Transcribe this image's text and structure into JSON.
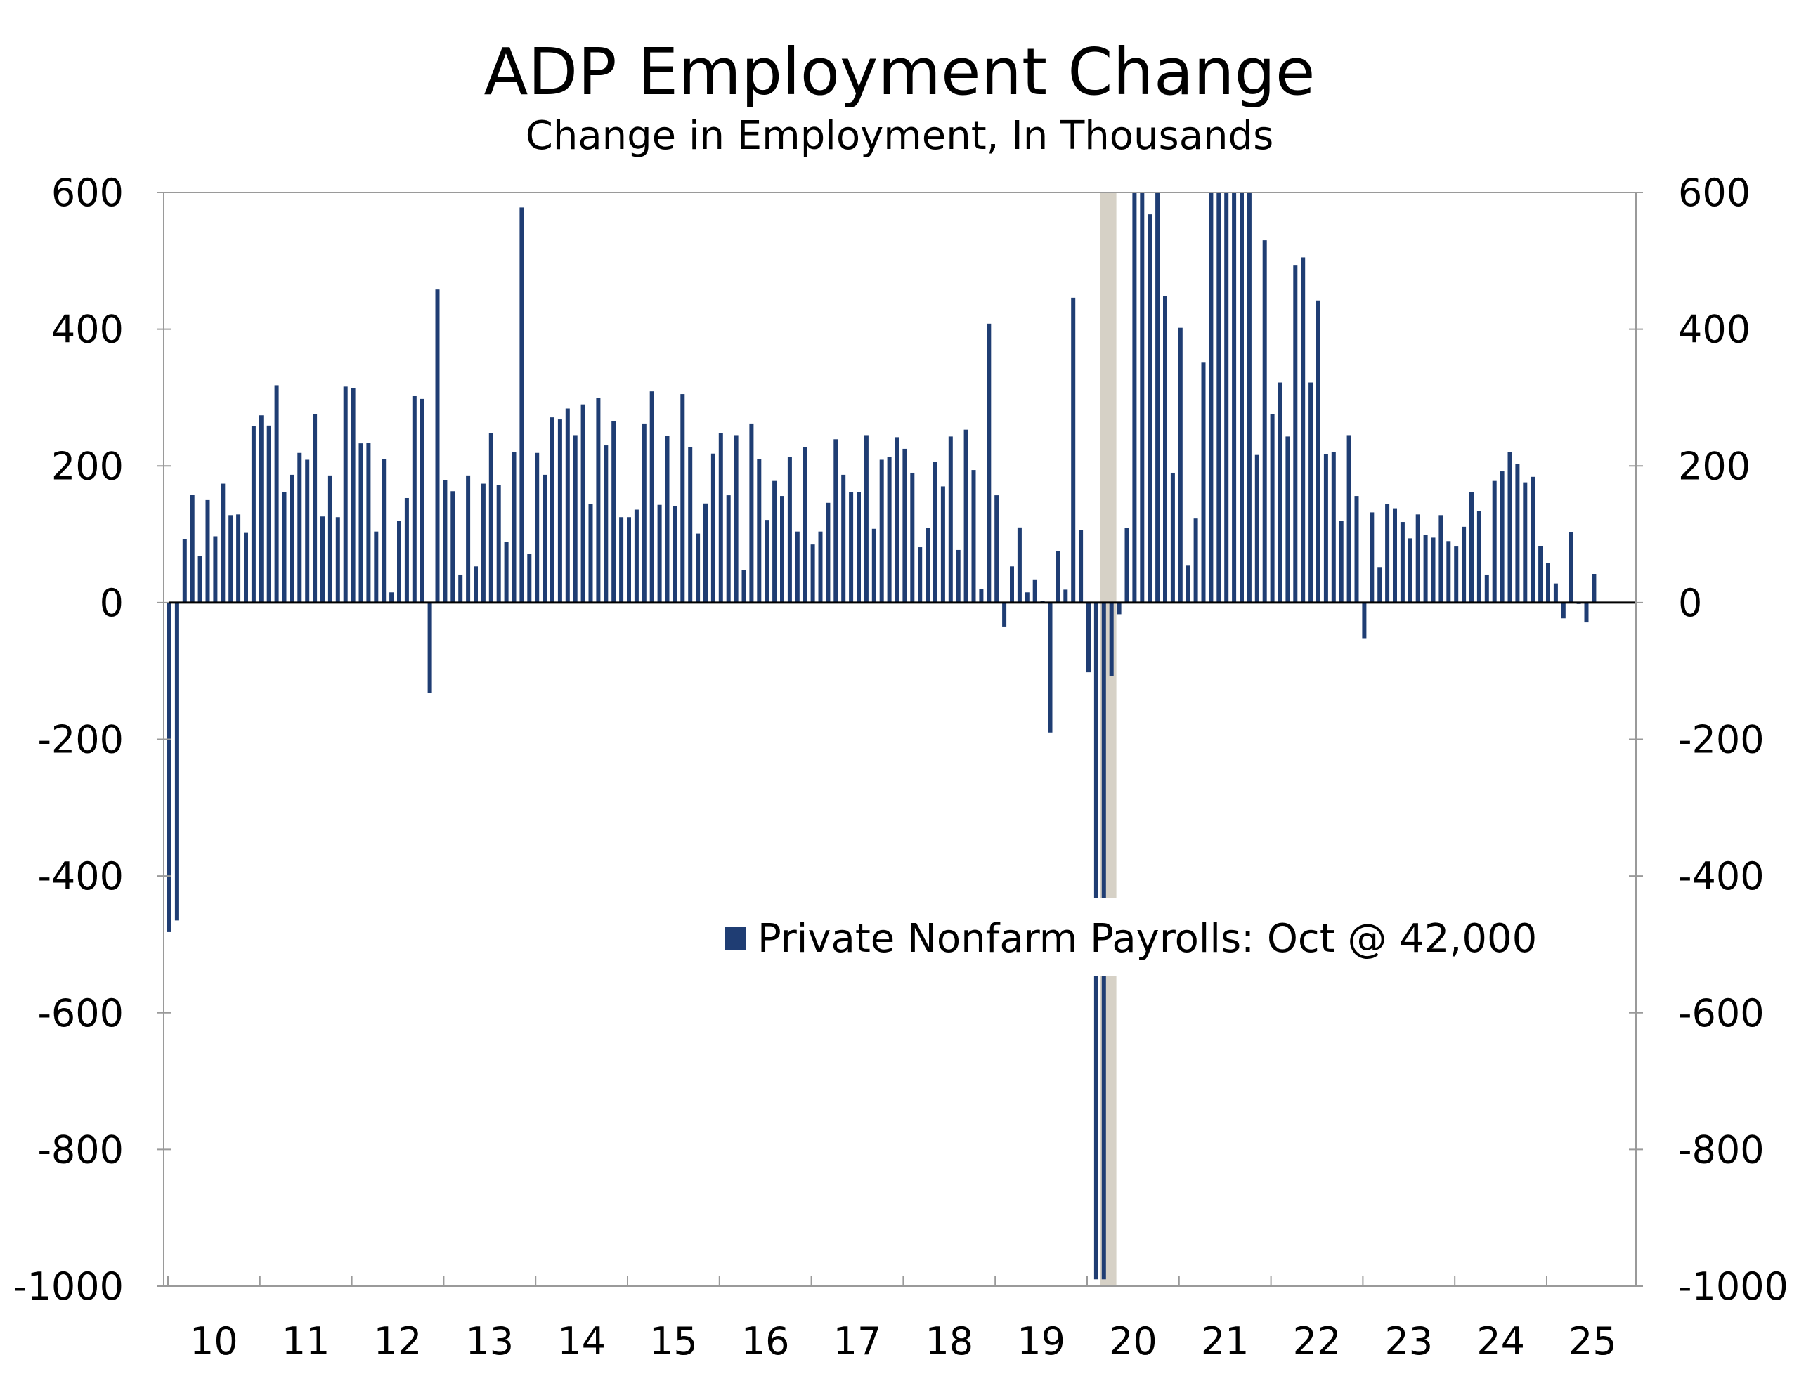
{
  "chart_data": {
    "type": "bar",
    "title": "ADP Employment Change",
    "subtitle": "Change in Employment, In Thousands",
    "ylim": [
      -1000,
      600
    ],
    "yticks": [
      600,
      400,
      200,
      0,
      -200,
      -400,
      -600,
      -800,
      -1000
    ],
    "ytick_labels": [
      "600",
      "400",
      "200",
      "0",
      "-200",
      "-400",
      "-600",
      "-800",
      "-1000"
    ],
    "xtick_labels": [
      "10",
      "11",
      "12",
      "13",
      "14",
      "15",
      "16",
      "17",
      "18",
      "19",
      "20",
      "21",
      "22",
      "23",
      "24",
      "25"
    ],
    "x_start": "2010-01",
    "recession_shading": {
      "start": "2020-03",
      "end": "2020-04"
    },
    "series": [
      {
        "name": "Private Nonfarm Payrolls: Oct @ 42,000",
        "color": "#1f3d73",
        "values": [
          -482,
          -465,
          93,
          158,
          68,
          150,
          97,
          174,
          128,
          129,
          102,
          258,
          274,
          259,
          318,
          162,
          187,
          219,
          209,
          276,
          126,
          186,
          125,
          316,
          314,
          233,
          234,
          104,
          210,
          15,
          120,
          153,
          302,
          298,
          -132,
          458,
          179,
          163,
          41,
          186,
          53,
          174,
          248,
          172,
          89,
          220,
          578,
          71,
          219,
          187,
          271,
          268,
          284,
          245,
          290,
          144,
          299,
          230,
          266,
          125,
          125,
          136,
          262,
          309,
          143,
          244,
          141,
          305,
          228,
          101,
          145,
          218,
          248,
          157,
          245,
          48,
          262,
          210,
          121,
          178,
          156,
          213,
          104,
          227,
          85,
          104,
          146,
          239,
          187,
          162,
          162,
          245,
          108,
          209,
          213,
          242,
          225,
          190,
          81,
          109,
          206,
          170,
          243,
          77,
          253,
          194,
          20,
          408,
          157,
          -35,
          53,
          110,
          15,
          34,
          2,
          -190,
          75,
          19,
          446,
          106,
          -102,
          -990,
          -990,
          -108,
          -17,
          109,
          600,
          600,
          568,
          600,
          448,
          190,
          402,
          54,
          123,
          351,
          600,
          600,
          600,
          600,
          600,
          600,
          216,
          530,
          276,
          322,
          243,
          494,
          505,
          322,
          442,
          217,
          220,
          120,
          245,
          156,
          -52,
          132,
          52,
          144,
          138,
          118,
          94,
          129,
          99,
          95,
          128,
          90,
          82,
          111,
          162,
          134,
          41,
          178,
          192,
          220,
          203,
          176,
          184,
          83,
          58,
          28,
          -23,
          103,
          -2,
          -29,
          42
        ]
      }
    ]
  }
}
